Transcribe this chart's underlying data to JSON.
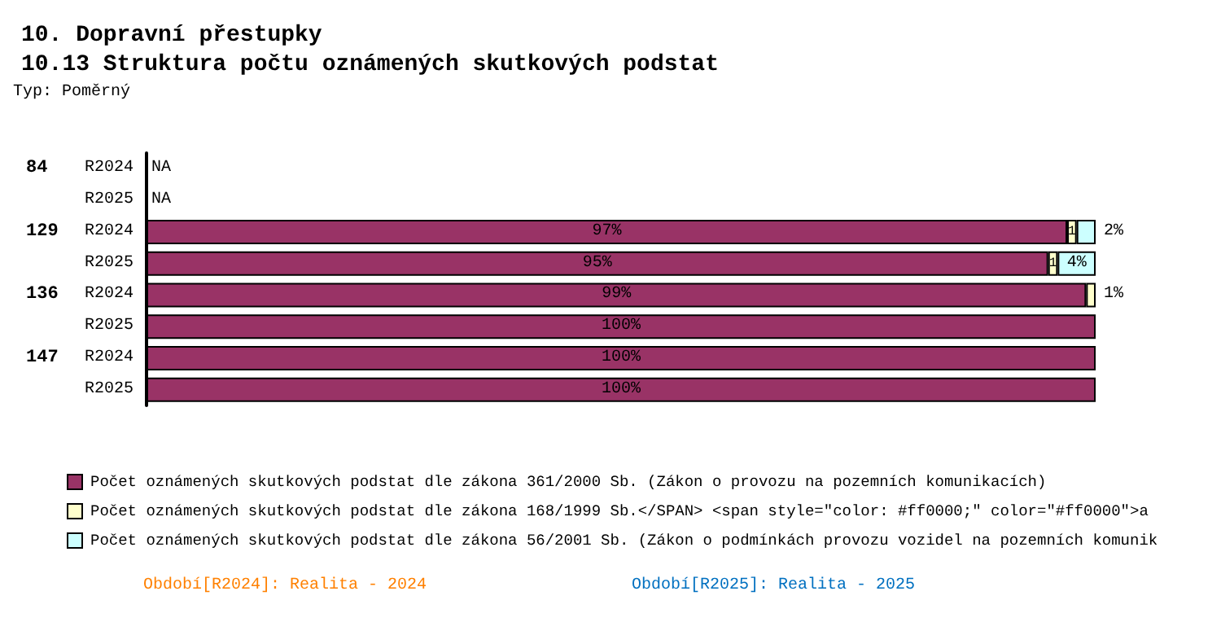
{
  "chart_data": {
    "type": "bar",
    "orientation": "horizontal",
    "stacked": true,
    "title": "10. Dopravní přestupky",
    "subtitle": "10.13 Struktura počtu oznámených skutkových podstat",
    "categories": [
      "R2024",
      "R2025",
      "R2024",
      "R2025",
      "R2024",
      "R2025",
      "R2024",
      "R2025"
    ],
    "xlim": [
      0,
      100
    ],
    "tick_labels": "y",
    "grid": false,
    "legend": "bottom",
    "series": [
      {
        "name": "Počet oznámených skutkových podstat dle zákona 361/2000 Sb. (Zákon o provozu na pozemních komunikacích)",
        "color": "#993366",
        "values": [
          null,
          null,
          97,
          95,
          99,
          100,
          100,
          100
        ],
        "value_labels": [
          "NA",
          "NA",
          "97%",
          "95%",
          "99%",
          "100%",
          "100%",
          "100%"
        ]
      },
      {
        "name": "Počet oznámených skutkových podstat dle zákona 168/1999 Sb.</SPAN> <span style=\"color: #ff0000;\" color=\"#ff0000\">a",
        "color": "#ffffcc",
        "values": [
          null,
          null,
          1,
          1,
          1,
          null,
          null,
          null
        ],
        "value_labels": [
          null,
          null,
          "1",
          "1",
          "1%",
          null,
          null,
          null
        ]
      },
      {
        "name": "Počet oznámených skutkových podstat dle zákona 56/2001 Sb. (Zákon o podmínkách provozu vozidel na pozemních komunik",
        "color": "#ccffff",
        "values": [
          null,
          null,
          2,
          4,
          null,
          null,
          null,
          null
        ],
        "value_labels": [
          null,
          null,
          "2%",
          "4%",
          null,
          null,
          null,
          null
        ]
      }
    ],
    "annotations": [
      "Typ: Poměrný",
      "84",
      "129",
      "136",
      "147",
      "Období[R2024]: Realita - 2024",
      "Období[R2025]: Realita - 2025"
    ]
  }
}
